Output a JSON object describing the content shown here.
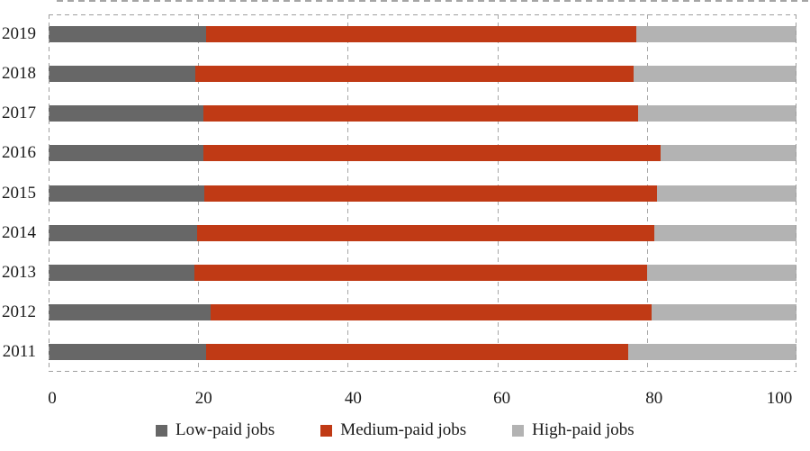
{
  "chart_data": {
    "type": "bar",
    "orientation": "horizontal",
    "stacked": true,
    "title": "",
    "xlabel": "",
    "ylabel": "",
    "categories": [
      "2019",
      "2018",
      "2017",
      "2016",
      "2015",
      "2014",
      "2013",
      "2012",
      "2011"
    ],
    "series": [
      {
        "name": "Low-paid jobs",
        "color": "#676767",
        "values": [
          21.1,
          19.6,
          20.7,
          20.7,
          20.8,
          19.8,
          19.5,
          21.7,
          21.1
        ]
      },
      {
        "name": "Medium-paid jobs",
        "color": "#c03a15",
        "values": [
          57.5,
          58.6,
          58.1,
          61.1,
          60.5,
          61.2,
          60.5,
          58.9,
          56.4
        ]
      },
      {
        "name": "High-paid jobs",
        "color": "#b3b3b3",
        "values": [
          21.4,
          21.8,
          21.2,
          18.2,
          18.7,
          19.0,
          20.0,
          19.4,
          22.5
        ]
      }
    ],
    "xlim": [
      0,
      100
    ],
    "xticks": [
      0,
      20,
      40,
      60,
      80,
      100
    ],
    "xtick_labels": [
      "0",
      "20",
      "40",
      "60",
      "80",
      "100"
    ],
    "grid": "dashed vertical gridlines, dashed plot border",
    "legend_position": "bottom",
    "colors": {
      "low_paid": "#676767",
      "medium_paid": "#c03a15",
      "high_paid": "#b3b3b3",
      "grid": "#a0a0a0",
      "text": "#1a1a1a",
      "background": "#ffffff"
    }
  }
}
